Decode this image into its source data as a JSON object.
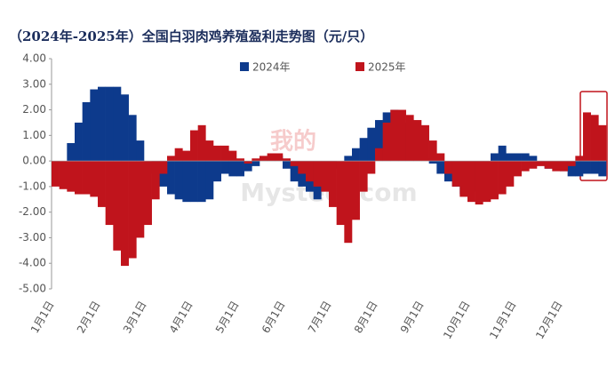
{
  "chart_data": {
    "type": "bar",
    "title": "（2024年-2025年）全国白羽肉鸡养殖盈利走势图（元/只）",
    "watermark": [
      "我的",
      "Mysteel.com"
    ],
    "categories": [
      "1月1日",
      null,
      null,
      null,
      null,
      null,
      "2月1日",
      null,
      null,
      null,
      null,
      null,
      "3月1日",
      null,
      null,
      null,
      null,
      null,
      "4月1日",
      null,
      null,
      null,
      null,
      null,
      "5月1日",
      null,
      null,
      null,
      null,
      null,
      "6月1日",
      null,
      null,
      null,
      null,
      null,
      "7月1日",
      null,
      null,
      null,
      null,
      null,
      "8月1日",
      null,
      null,
      null,
      null,
      null,
      "9月1日",
      null,
      null,
      null,
      null,
      null,
      "10月1日",
      null,
      null,
      null,
      null,
      null,
      "11月1日",
      null,
      null,
      null,
      null,
      null,
      "12月1日",
      null,
      null,
      null,
      null,
      null
    ],
    "series": [
      {
        "name": "2024年",
        "color": "#0d3a8c",
        "values": [
          -0.1,
          0.0,
          0.7,
          1.5,
          2.3,
          2.8,
          2.9,
          2.9,
          2.9,
          2.6,
          1.8,
          0.8,
          0.0,
          -0.5,
          -1.0,
          -1.3,
          -1.5,
          -1.6,
          -1.6,
          -1.6,
          -1.5,
          -0.8,
          -0.5,
          -0.6,
          -0.6,
          -0.4,
          -0.2,
          0.1,
          0.2,
          0.2,
          -0.3,
          -0.8,
          -1.0,
          -1.2,
          -1.5,
          -1.0,
          -0.3,
          0.0,
          0.2,
          0.5,
          0.9,
          1.3,
          1.6,
          1.9,
          2.0,
          1.5,
          0.8,
          0.3,
          0.1,
          -0.1,
          -0.5,
          -0.8,
          -1.0,
          -1.3,
          -1.2,
          -1.0,
          -0.5,
          0.3,
          0.6,
          0.3,
          0.3,
          0.3,
          0.2,
          -0.1,
          -0.3,
          -0.3,
          -0.4,
          -0.6,
          -0.6,
          -0.5,
          -0.5,
          -0.6
        ]
      },
      {
        "name": "2025年",
        "color": "#c0141c",
        "values": [
          -1.0,
          -1.1,
          -1.2,
          -1.3,
          -1.3,
          -1.4,
          -1.8,
          -2.5,
          -3.5,
          -4.1,
          -3.8,
          -3.0,
          -2.5,
          -1.5,
          -0.5,
          0.2,
          0.5,
          0.4,
          1.2,
          1.4,
          0.8,
          0.6,
          0.6,
          0.4,
          0.1,
          -0.1,
          0.1,
          0.2,
          0.3,
          0.3,
          0.1,
          -0.2,
          -0.5,
          -0.8,
          -1.0,
          -1.2,
          -1.8,
          -2.5,
          -3.2,
          -2.3,
          -1.2,
          -0.5,
          0.5,
          1.5,
          2.0,
          2.0,
          1.8,
          1.6,
          1.4,
          0.8,
          0.3,
          -0.5,
          -1.0,
          -1.4,
          -1.6,
          -1.7,
          -1.6,
          -1.5,
          -1.3,
          -1.0,
          -0.6,
          -0.4,
          -0.3,
          -0.2,
          -0.3,
          -0.4,
          -0.4,
          -0.2,
          0.2,
          1.9,
          1.8,
          1.4
        ]
      }
    ],
    "ylim": [
      -5,
      4
    ],
    "yticks": [
      {
        "value": 4,
        "label": "4.00"
      },
      {
        "value": 3,
        "label": "3.00"
      },
      {
        "value": 2,
        "label": "2.00"
      },
      {
        "value": 1,
        "label": "1.00"
      },
      {
        "value": 0,
        "label": "0.00"
      },
      {
        "value": -1,
        "label": "-1.00"
      },
      {
        "value": -2,
        "label": "-2.00"
      },
      {
        "value": -3,
        "label": "-3.00"
      },
      {
        "value": -4,
        "label": "-4.00"
      },
      {
        "value": -5,
        "label": "-5.00"
      }
    ],
    "grid": false
  }
}
